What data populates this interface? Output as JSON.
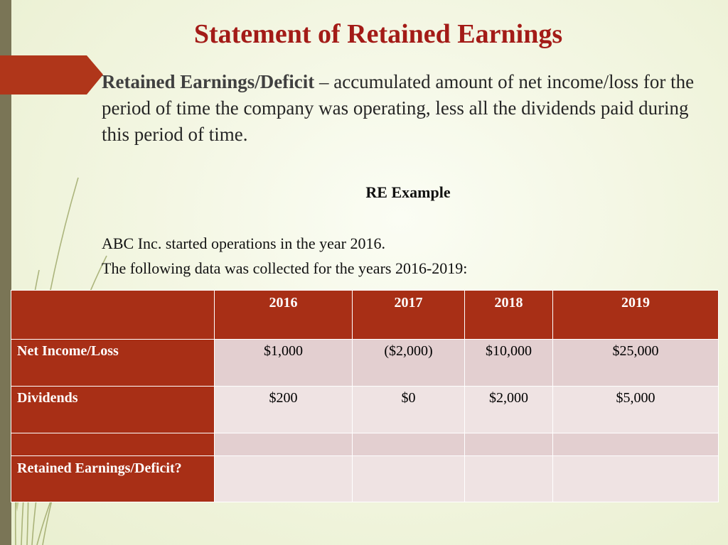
{
  "slide": {
    "title": "Statement of Retained Earnings",
    "definition": {
      "term": "Retained Earnings/Deficit",
      "text": " – accumulated amount of net income/loss for the period of time the company was operating, less all the dividends paid during this period of time."
    },
    "example_heading": "RE Example",
    "intro_lines": [
      "ABC Inc. started operations in the year 2016.",
      "The following data was collected for the years 2016-2019:"
    ]
  },
  "table": {
    "years": [
      "2016",
      "2017",
      "2018",
      "2019"
    ],
    "rows": [
      {
        "label": "Net Income/Loss",
        "values": [
          "$1,000",
          "($2,000)",
          "$10,000",
          "$25,000"
        ]
      },
      {
        "label": "Dividends",
        "values": [
          "$200",
          "$0",
          "$2,000",
          "$5,000"
        ]
      },
      {
        "label": "",
        "values": [
          "",
          "",
          "",
          ""
        ]
      },
      {
        "label": "Retained Earnings/Deficit?",
        "values": [
          "",
          "",
          "",
          ""
        ]
      }
    ]
  },
  "colors": {
    "title": "#a31b17",
    "table_header": "#a82f16",
    "accent_tab": "#b0361a",
    "left_bar": "#7a7556"
  }
}
